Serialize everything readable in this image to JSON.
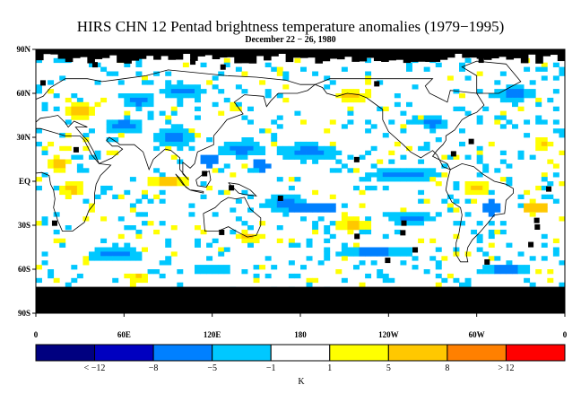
{
  "title": "HIRS CHN 12 Pentad brightness temperature anomalies (1979−1995)",
  "subtitle": "December 22 − 26, 1980",
  "map": {
    "lat_ticks": [
      {
        "lat": 90,
        "label": "90N"
      },
      {
        "lat": 60,
        "label": "60N"
      },
      {
        "lat": 30,
        "label": "30N"
      },
      {
        "lat": 0,
        "label": "EQ"
      },
      {
        "lat": -30,
        "label": "30S"
      },
      {
        "lat": -60,
        "label": "60S"
      },
      {
        "lat": -90,
        "label": "90S"
      }
    ],
    "lon_ticks": [
      {
        "lon": 0,
        "label": "0"
      },
      {
        "lon": 60,
        "label": "60E"
      },
      {
        "lon": 120,
        "label": "120E"
      },
      {
        "lon": 180,
        "label": "180"
      },
      {
        "lon": 240,
        "label": "120W"
      },
      {
        "lon": 300,
        "label": "60W"
      },
      {
        "lon": 360,
        "label": "0"
      }
    ],
    "missing_color": "#000000",
    "coast_color": "#000000"
  },
  "colorbar": {
    "unit_label": "K",
    "bins": [
      {
        "color": "#000080"
      },
      {
        "color": "#0000c0"
      },
      {
        "color": "#0080ff"
      },
      {
        "color": "#00c8ff"
      },
      {
        "color": "#ffffff"
      },
      {
        "color": "#ffff00"
      },
      {
        "color": "#ffc800"
      },
      {
        "color": "#ff8000"
      },
      {
        "color": "#ff0000"
      }
    ],
    "labels": [
      "< −12",
      "−8",
      "−5",
      "−1",
      "1",
      "5",
      "8",
      "> 12"
    ]
  },
  "chart_data": {
    "type": "heatmap",
    "title": "HIRS CHN 12 Pentad brightness temperature anomalies (1979−1995)",
    "subtitle": "December 22 − 26, 1980",
    "unit": "K",
    "levels": [
      -12,
      -8,
      -5,
      -1,
      1,
      5,
      8,
      12
    ],
    "xlim": [
      0,
      360
    ],
    "ylim": [
      -90,
      90
    ],
    "anomaly_regions": [
      {
        "lon": 30,
        "lat": 48,
        "rlon": 10,
        "rlat": 6,
        "bin": 5
      },
      {
        "lon": 60,
        "lat": 38,
        "rlon": 14,
        "rlat": 6,
        "bin": 3
      },
      {
        "lon": 95,
        "lat": 30,
        "rlon": 14,
        "rlat": 8,
        "bin": 3
      },
      {
        "lon": 118,
        "lat": 14,
        "rlon": 6,
        "rlat": 4,
        "bin": 2
      },
      {
        "lon": 140,
        "lat": 22,
        "rlon": 16,
        "rlat": 6,
        "bin": 3
      },
      {
        "lon": 153,
        "lat": 11,
        "rlon": 6,
        "rlat": 4,
        "bin": 2
      },
      {
        "lon": 185,
        "lat": 20,
        "rlon": 22,
        "rlat": 6,
        "bin": 3
      },
      {
        "lon": 215,
        "lat": 58,
        "rlon": 12,
        "rlat": 5,
        "bin": 5
      },
      {
        "lon": 270,
        "lat": 40,
        "rlon": 10,
        "rlat": 6,
        "bin": 3
      },
      {
        "lon": 250,
        "lat": 5,
        "rlon": 26,
        "rlat": 5,
        "bin": 3
      },
      {
        "lon": 300,
        "lat": -5,
        "rlon": 10,
        "rlat": 5,
        "bin": 5
      },
      {
        "lon": 310,
        "lat": -18,
        "rlon": 6,
        "rlat": 5,
        "bin": 2
      },
      {
        "lon": 340,
        "lat": -18,
        "rlon": 7,
        "rlat": 4,
        "bin": 6
      },
      {
        "lon": 185,
        "lat": -18,
        "rlon": 20,
        "rlat": 4,
        "bin": 2
      },
      {
        "lon": 170,
        "lat": -15,
        "rlon": 16,
        "rlat": 6,
        "bin": 3
      },
      {
        "lon": 145,
        "lat": -38,
        "rlon": 8,
        "rlat": 4,
        "bin": 5
      },
      {
        "lon": 255,
        "lat": -25,
        "rlon": 16,
        "rlat": 5,
        "bin": 3
      },
      {
        "lon": 215,
        "lat": -30,
        "rlon": 12,
        "rlat": 5,
        "bin": 5
      },
      {
        "lon": 55,
        "lat": -50,
        "rlon": 20,
        "rlat": 5,
        "bin": 3
      },
      {
        "lon": 230,
        "lat": -48,
        "rlon": 28,
        "rlat": 4,
        "bin": 3
      },
      {
        "lon": 90,
        "lat": 0,
        "rlon": 14,
        "rlat": 4,
        "bin": 5
      },
      {
        "lon": 15,
        "lat": 12,
        "rlon": 8,
        "rlat": 5,
        "bin": 5
      },
      {
        "lon": 25,
        "lat": -5,
        "rlon": 8,
        "rlat": 6,
        "bin": 5
      },
      {
        "lon": 70,
        "lat": 55,
        "rlon": 12,
        "rlat": 6,
        "bin": 3
      },
      {
        "lon": 100,
        "lat": 62,
        "rlon": 16,
        "rlat": 5,
        "bin": 3
      },
      {
        "lon": 325,
        "lat": 60,
        "rlon": 16,
        "rlat": 5,
        "bin": 3
      },
      {
        "lon": 345,
        "lat": 25,
        "rlon": 6,
        "rlat": 5,
        "bin": 5
      },
      {
        "lon": 120,
        "lat": -60,
        "rlon": 16,
        "rlat": 3,
        "bin": 3
      },
      {
        "lon": 320,
        "lat": -60,
        "rlon": 20,
        "rlat": 4,
        "bin": 3
      },
      {
        "lon": 70,
        "lat": -65,
        "rlon": 8,
        "rlat": 3,
        "bin": 5
      }
    ]
  }
}
